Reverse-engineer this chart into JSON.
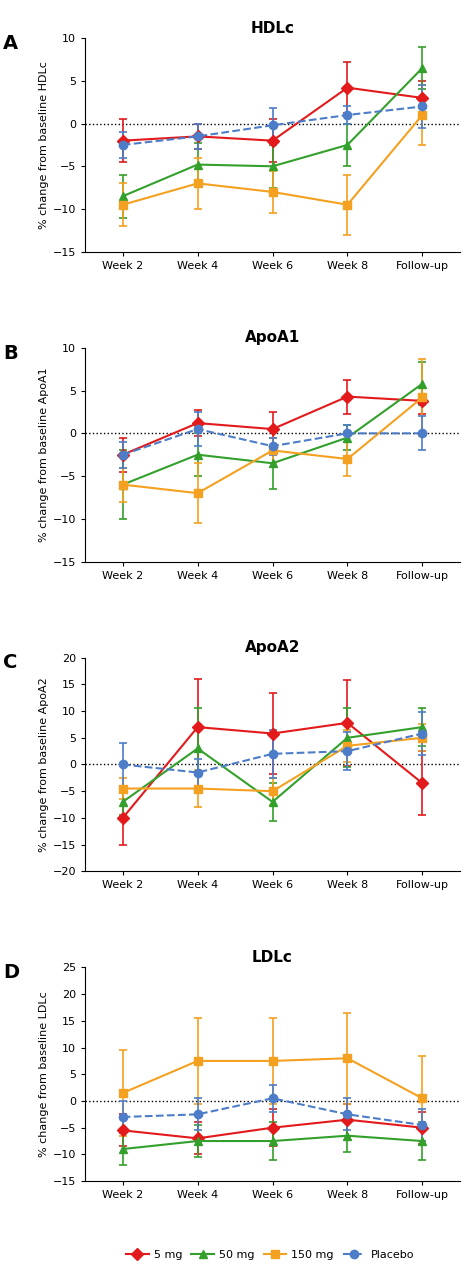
{
  "panels": [
    {
      "label": "A",
      "title": "HDLc",
      "ylabel": "% change from baseline HDLc",
      "ylim": [
        -15,
        10
      ],
      "yticks": [
        -15,
        -10,
        -5,
        0,
        5,
        10
      ],
      "series": {
        "5mg": {
          "y": [
            -2.0,
            -1.5,
            -2.0,
            4.2,
            3.0
          ],
          "yerr": [
            2.5,
            1.5,
            2.5,
            3.0,
            2.0
          ]
        },
        "50mg": {
          "y": [
            -8.5,
            -4.8,
            -5.0,
            -2.5,
            6.5
          ],
          "yerr": [
            2.5,
            2.5,
            2.5,
            2.5,
            2.5
          ]
        },
        "150mg": {
          "y": [
            -9.5,
            -7.0,
            -8.0,
            -9.5,
            1.0
          ],
          "yerr": [
            2.5,
            3.0,
            2.5,
            3.5,
            3.5
          ]
        },
        "placebo": {
          "y": [
            -2.5,
            -1.5,
            -0.2,
            1.0,
            2.0
          ],
          "yerr": [
            1.5,
            1.5,
            2.0,
            1.0,
            2.5
          ]
        }
      }
    },
    {
      "label": "B",
      "title": "ApoA1",
      "ylabel": "% change from baseline ApoA1",
      "ylim": [
        -15,
        10
      ],
      "yticks": [
        -15,
        -10,
        -5,
        0,
        5,
        10
      ],
      "series": {
        "5mg": {
          "y": [
            -2.5,
            1.2,
            0.5,
            4.3,
            3.8
          ],
          "yerr": [
            2.0,
            1.5,
            2.0,
            2.0,
            1.5
          ]
        },
        "50mg": {
          "y": [
            -6.0,
            -2.5,
            -3.5,
            -0.5,
            5.8
          ],
          "yerr": [
            4.0,
            2.5,
            3.0,
            1.5,
            2.5
          ]
        },
        "150mg": {
          "y": [
            -6.0,
            -7.0,
            -2.0,
            -3.0,
            4.2
          ],
          "yerr": [
            2.0,
            3.5,
            1.5,
            2.0,
            4.5
          ]
        },
        "placebo": {
          "y": [
            -2.5,
            0.5,
            -1.5,
            0.0,
            0.0
          ],
          "yerr": [
            1.5,
            2.0,
            1.0,
            1.0,
            2.0
          ]
        }
      }
    },
    {
      "label": "C",
      "title": "ApoA2",
      "ylabel": "% change from baseline ApoA2",
      "ylim": [
        -20,
        20
      ],
      "yticks": [
        -20,
        -15,
        -10,
        -5,
        0,
        5,
        10,
        15,
        20
      ],
      "series": {
        "5mg": {
          "y": [
            -10.0,
            7.0,
            5.8,
            7.8,
            -3.5
          ],
          "yerr": [
            5.0,
            9.0,
            7.5,
            8.0,
            6.0
          ]
        },
        "50mg": {
          "y": [
            -7.0,
            3.0,
            -7.0,
            5.0,
            7.0
          ],
          "yerr": [
            2.5,
            7.5,
            3.5,
            5.5,
            3.5
          ]
        },
        "150mg": {
          "y": [
            -4.5,
            -4.5,
            -5.0,
            3.5,
            5.0
          ],
          "yerr": [
            2.0,
            3.5,
            2.5,
            3.0,
            2.5
          ]
        },
        "placebo": {
          "y": [
            0.0,
            -1.5,
            2.0,
            2.5,
            5.8
          ],
          "yerr": [
            4.0,
            2.5,
            4.5,
            3.5,
            4.0
          ]
        }
      }
    },
    {
      "label": "D",
      "title": "LDLc",
      "ylabel": "% change from baseline LDLc",
      "ylim": [
        -15,
        25
      ],
      "yticks": [
        -15,
        -10,
        -5,
        0,
        5,
        10,
        15,
        20,
        25
      ],
      "series": {
        "5mg": {
          "y": [
            -5.5,
            -7.0,
            -5.0,
            -3.5,
            -5.0
          ],
          "yerr": [
            3.0,
            3.0,
            3.5,
            3.0,
            3.0
          ]
        },
        "50mg": {
          "y": [
            -9.0,
            -7.5,
            -7.5,
            -6.5,
            -7.5
          ],
          "yerr": [
            3.0,
            3.0,
            3.5,
            3.0,
            3.5
          ]
        },
        "150mg": {
          "y": [
            1.5,
            7.5,
            7.5,
            8.0,
            0.5
          ],
          "yerr": [
            8.0,
            8.0,
            8.0,
            8.5,
            8.0
          ]
        },
        "placebo": {
          "y": [
            -3.0,
            -2.5,
            0.5,
            -2.5,
            -4.5
          ],
          "yerr": [
            3.0,
            3.0,
            2.5,
            3.0,
            3.0
          ]
        }
      }
    }
  ],
  "x_labels": [
    "Week 2",
    "Week 4",
    "Week 6",
    "Week 8",
    "Follow-up"
  ],
  "colors": {
    "5mg": "#e31a1c",
    "50mg": "#33a02c",
    "150mg": "#f4a020",
    "placebo": "#4d7dc8"
  },
  "markers": {
    "5mg": "D",
    "50mg": "^",
    "150mg": "s",
    "placebo": "o"
  },
  "legend_labels": {
    "5mg": "5 mg",
    "50mg": "50 mg",
    "150mg": "150 mg",
    "placebo": "Placebo"
  }
}
